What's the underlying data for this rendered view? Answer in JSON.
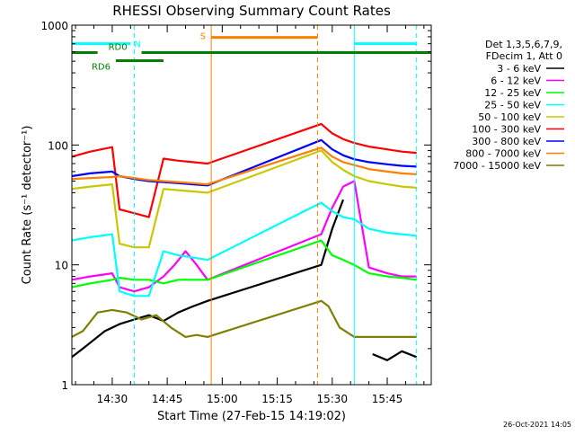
{
  "chart_data": {
    "type": "line",
    "title": "RHESSI Observing Summary Count Rates",
    "xlabel": "Start Time (27-Feb-15 14:19:02)",
    "ylabel": "Count Rate (s⁻¹ detector⁻¹)",
    "ylog": true,
    "xlim": [
      "14:19",
      "15:57"
    ],
    "ylim": [
      1,
      1000
    ],
    "x_ticks": [
      "14:30",
      "14:45",
      "15:00",
      "15:15",
      "15:30",
      "15:45"
    ],
    "y_ticks": [
      "1",
      "10",
      "100",
      "1000"
    ],
    "grid": false,
    "legend_placement": "right",
    "legend_header": [
      "Det 1,3,5,6,7,9,",
      "FDecim 1, Att 0"
    ],
    "footer_date": "26-Oct-2021 14:05",
    "intervals": [
      {
        "label": "N",
        "color": "#00ffff",
        "segments": [
          [
            "14:19",
            "14:35"
          ],
          [
            "15:36",
            "15:53"
          ]
        ],
        "level": 700
      },
      {
        "label": "S",
        "color": "#ff8000",
        "segments": [
          [
            "14:57",
            "15:26"
          ]
        ],
        "level": 790
      },
      {
        "label": "RD0",
        "color": "#008000",
        "segments": [
          [
            "14:19",
            "14:26"
          ],
          [
            "14:38",
            "15:57"
          ]
        ],
        "level": 590
      },
      {
        "label": "RD6",
        "color": "#008000",
        "segments": [
          [
            "14:31",
            "14:44"
          ]
        ],
        "level": 505
      }
    ],
    "vlines": [
      {
        "t": "14:19",
        "color": "#00ffff",
        "style": "solid"
      },
      {
        "t": "14:36",
        "color": "#00ffff",
        "style": "dashed"
      },
      {
        "t": "14:57",
        "color": "#ff8000",
        "style": "solid"
      },
      {
        "t": "15:26",
        "color": "#ff8000",
        "style": "dashed"
      },
      {
        "t": "15:36",
        "color": "#00ffff",
        "style": "solid"
      },
      {
        "t": "15:53",
        "color": "#00ffff",
        "style": "dashed"
      }
    ],
    "series": [
      {
        "name": "3 - 6 keV",
        "color": "#000000",
        "x": [
          "14:19",
          "14:22",
          "14:28",
          "14:32",
          "14:36",
          "14:40",
          "14:44",
          "14:48",
          "14:52",
          "14:56",
          "15:27",
          "15:30",
          "15:33",
          "15:37",
          "15:41",
          "15:45",
          "15:49",
          "15:53"
        ],
        "y": [
          1.7,
          2.0,
          2.8,
          3.2,
          3.5,
          3.8,
          3.4,
          4.0,
          4.5,
          5.0,
          10,
          20,
          35,
          null,
          1.8,
          1.6,
          1.9,
          1.7
        ]
      },
      {
        "name": "6 - 12 keV",
        "color": "#ff00ff",
        "x": [
          "14:19",
          "14:24",
          "14:30",
          "14:32",
          "14:36",
          "14:40",
          "14:44",
          "14:47",
          "14:50",
          "14:53",
          "14:56",
          "15:27",
          "15:30",
          "15:33",
          "15:36",
          "15:40",
          "15:45",
          "15:49",
          "15:53"
        ],
        "y": [
          7.5,
          8,
          8.5,
          6.5,
          6.0,
          6.5,
          8.0,
          10,
          13,
          10,
          7.5,
          18,
          30,
          45,
          50,
          9.5,
          8.5,
          8.0,
          8.0
        ]
      },
      {
        "name": "12 - 25 keV",
        "color": "#00ff00",
        "x": [
          "14:19",
          "14:24",
          "14:30",
          "14:32",
          "14:36",
          "14:40",
          "14:44",
          "14:48",
          "14:52",
          "14:56",
          "15:27",
          "15:30",
          "15:33",
          "15:36",
          "15:40",
          "15:45",
          "15:49",
          "15:53"
        ],
        "y": [
          6.5,
          7.0,
          7.5,
          7.8,
          7.5,
          7.5,
          7.0,
          7.5,
          7.5,
          7.5,
          16,
          12,
          11,
          10,
          8.5,
          8.0,
          7.8,
          7.5
        ]
      },
      {
        "name": "25 - 50 keV",
        "color": "#00ffff",
        "x": [
          "14:19",
          "14:24",
          "14:30",
          "14:32",
          "14:36",
          "14:40",
          "14:44",
          "14:48",
          "14:52",
          "14:56",
          "15:27",
          "15:30",
          "15:33",
          "15:36",
          "15:40",
          "15:45",
          "15:49",
          "15:53"
        ],
        "y": [
          16,
          17,
          18,
          6.0,
          5.5,
          5.5,
          13,
          12,
          11.5,
          11,
          33,
          28,
          25,
          24,
          20,
          18.5,
          18,
          17.5
        ]
      },
      {
        "name": "50 - 100 keV",
        "color": "#c8c800",
        "x": [
          "14:19",
          "14:24",
          "14:30",
          "14:32",
          "14:36",
          "14:40",
          "14:44",
          "14:48",
          "14:52",
          "14:56",
          "15:27",
          "15:30",
          "15:33",
          "15:36",
          "15:40",
          "15:45",
          "15:49",
          "15:53"
        ],
        "y": [
          43,
          45,
          47,
          15,
          14,
          14,
          43,
          42,
          41,
          40,
          90,
          72,
          62,
          55,
          50,
          47,
          45,
          44
        ]
      },
      {
        "name": "100 - 300 keV",
        "color": "#ff0000",
        "x": [
          "14:19",
          "14:24",
          "14:30",
          "14:32",
          "14:36",
          "14:40",
          "14:44",
          "14:48",
          "14:52",
          "14:56",
          "15:27",
          "15:30",
          "15:33",
          "15:36",
          "15:40",
          "15:45",
          "15:49",
          "15:53"
        ],
        "y": [
          80,
          88,
          96,
          29,
          27,
          25,
          77,
          74,
          72,
          70,
          150,
          125,
          112,
          104,
          97,
          92,
          88,
          86
        ]
      },
      {
        "name": "300 - 800 keV",
        "color": "#0000ff",
        "x": [
          "14:19",
          "14:24",
          "14:30",
          "14:32",
          "14:36",
          "14:40",
          "14:44",
          "14:48",
          "14:52",
          "14:56",
          "15:27",
          "15:30",
          "15:33",
          "15:36",
          "15:40",
          "15:45",
          "15:49",
          "15:53"
        ],
        "y": [
          55,
          58,
          60,
          55,
          52,
          50,
          49,
          48,
          47,
          46,
          110,
          92,
          82,
          76,
          72,
          69,
          67,
          66
        ]
      },
      {
        "name": "800 - 7000 keV",
        "color": "#ff8000",
        "x": [
          "14:19",
          "14:24",
          "14:30",
          "14:32",
          "14:36",
          "14:40",
          "14:44",
          "14:48",
          "14:52",
          "14:56",
          "15:27",
          "15:30",
          "15:33",
          "15:36",
          "15:40",
          "15:45",
          "15:49",
          "15:53"
        ],
        "y": [
          52,
          53,
          54,
          55,
          53,
          51,
          50,
          49,
          48,
          47,
          95,
          80,
          72,
          68,
          63,
          60,
          58,
          57
        ]
      },
      {
        "name": "7000 - 15000 keV",
        "color": "#808000",
        "x": [
          "14:19",
          "14:22",
          "14:26",
          "14:30",
          "14:34",
          "14:38",
          "14:42",
          "14:46",
          "14:50",
          "14:53",
          "14:56",
          "15:27",
          "15:29",
          "15:32",
          "15:36",
          "15:40",
          "15:45",
          "15:49",
          "15:53"
        ],
        "y": [
          2.5,
          2.8,
          4.0,
          4.2,
          4.0,
          3.5,
          3.8,
          3.0,
          2.5,
          2.6,
          2.5,
          5.0,
          4.5,
          3.0,
          2.5,
          2.5,
          2.5,
          2.5,
          2.5
        ]
      }
    ]
  }
}
